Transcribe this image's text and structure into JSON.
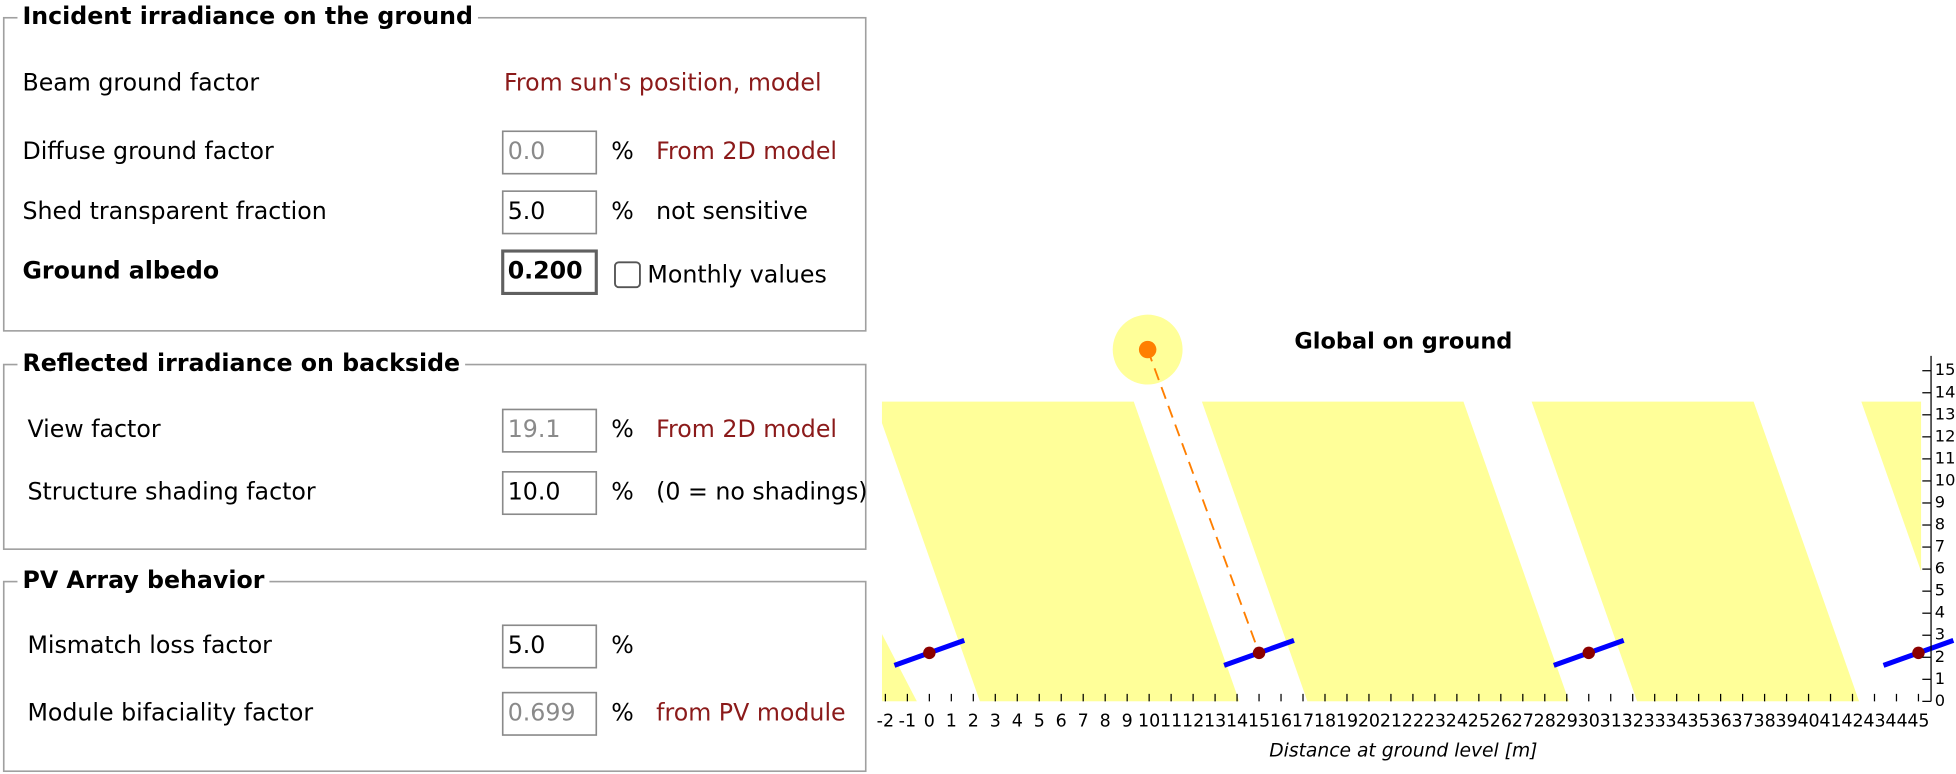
{
  "groups": [
    {
      "title": "Incident irradiance on the ground",
      "rows": [
        {
          "label": "Beam ground factor",
          "note": "From sun's position, model",
          "note_color": "#8b1a1a"
        },
        {
          "label": "Diffuse ground factor",
          "value": "0.0",
          "disabled": true,
          "unit": "%",
          "note": "From 2D model",
          "note_color": "#8b1a1a"
        },
        {
          "label": "Shed transparent fraction",
          "value": "5.0",
          "unit": "%",
          "note": "not sensitive",
          "note_color": "#000000"
        },
        {
          "label": "Ground albedo",
          "value": "0.200",
          "bold": true,
          "checkbox": "Monthly values"
        }
      ]
    },
    {
      "title": "Reflected irradiance on backside",
      "rows": [
        {
          "label": "View factor",
          "value": "19.1",
          "disabled": true,
          "unit": "%",
          "note": "From 2D model",
          "note_color": "#8b1a1a"
        },
        {
          "label": "Structure shading factor",
          "value": "10.0",
          "unit": "%",
          "note": "(0 = no shadings)",
          "note_color": "#000000"
        }
      ]
    },
    {
      "title": "PV Array behavior",
      "rows": [
        {
          "label": "Mismatch loss factor",
          "value": "5.0",
          "unit": "%"
        },
        {
          "label": "Module bifaciality factor",
          "value": "0.699",
          "disabled": true,
          "unit": "%",
          "note": "from PV module",
          "note_color": "#8b1a1a"
        }
      ]
    }
  ],
  "plot": {
    "title": "Global on ground",
    "x_label": "Distance at ground level [m]",
    "xticks": [
      -2,
      -1,
      0,
      1,
      2,
      3,
      4,
      5,
      6,
      7,
      8,
      9,
      10,
      11,
      12,
      13,
      14,
      15,
      16,
      17,
      18,
      19,
      20,
      21,
      22,
      23,
      24,
      25,
      26,
      27,
      28,
      29,
      30,
      31,
      32,
      33,
      34,
      35,
      36,
      37,
      38,
      39,
      40,
      41,
      42,
      43,
      44,
      45
    ],
    "yticks": [
      0,
      1,
      2,
      3,
      4,
      5,
      6,
      7,
      8,
      9,
      10,
      11,
      12,
      13,
      14,
      15
    ]
  }
}
